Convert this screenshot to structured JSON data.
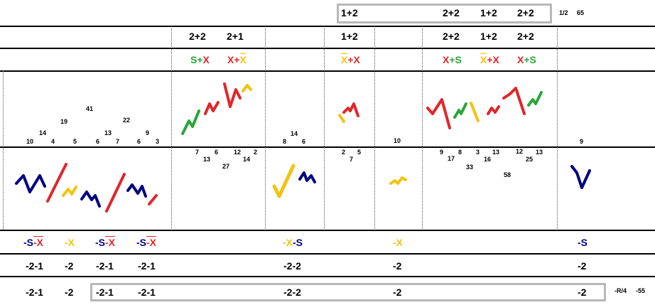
{
  "colors": {
    "navy": "#000080",
    "red": "#e0262a",
    "yellow": "#f2c40f",
    "green": "#2aa639",
    "black": "#000000",
    "gray": "#b8b8b8"
  },
  "top_box": {
    "left": "1+2",
    "a": "2+2",
    "b": "1+2",
    "c": "2+2"
  },
  "top_right": {
    "ratio": "1/2",
    "count": "65"
  },
  "row_pairs": {
    "p1": "2+2",
    "p2": "2+1",
    "p3": "1+2",
    "p4": "2+2",
    "p5": "1+2",
    "p6": "2+2"
  },
  "combos": {
    "c1": {
      "a": "S",
      "op": "+",
      "b": "X"
    },
    "c2": {
      "a": "X",
      "op": "+",
      "b": "X"
    },
    "c3": {
      "a": "X",
      "op": "+",
      "b": "X"
    },
    "c4": {
      "a": "X",
      "op": "+",
      "b": "S"
    },
    "c5": {
      "a": "X",
      "op": "+",
      "b": "X"
    },
    "c6": {
      "a": "X",
      "op": "+",
      "b": "S"
    }
  },
  "numbers_upper": {
    "s1": [
      "10",
      "14",
      "4",
      "19",
      "5",
      "41",
      "6",
      "13",
      "7",
      "22",
      "6",
      "9",
      "3"
    ],
    "s3": [
      "8",
      "14",
      "6"
    ],
    "s5": [
      "10"
    ],
    "s7": [
      "9"
    ]
  },
  "numbers_lower": {
    "s2": [
      "7",
      "13",
      "6",
      "27",
      "12",
      "14",
      "2"
    ],
    "s4": [
      "2",
      "7",
      "5"
    ],
    "s6": [
      "9",
      "17",
      "8",
      "33",
      "3",
      "16",
      "13",
      "58",
      "12",
      "25",
      "13"
    ]
  },
  "tokens": {
    "t1": {
      "a": "-S",
      "b": "-X"
    },
    "t2": {
      "a": "-X"
    },
    "t3": {
      "a": "-S",
      "b": "-X"
    },
    "t4": {
      "a": "-S",
      "b": "-X"
    },
    "t5": {
      "a": "-X",
      "b": "-S"
    },
    "t6": {
      "a": "-X"
    },
    "t7": {
      "a": "-S"
    }
  },
  "row_a": [
    "-2-1",
    "-2",
    "-2-1",
    "-2-1",
    "-2-2",
    "-2",
    "-2"
  ],
  "row_b": [
    "-2-1",
    "-2",
    "-2-1",
    "-2-1",
    "-2-2",
    "-2",
    "-2"
  ],
  "bottom_right": {
    "ratio": "-R/4",
    "count": "-55"
  }
}
